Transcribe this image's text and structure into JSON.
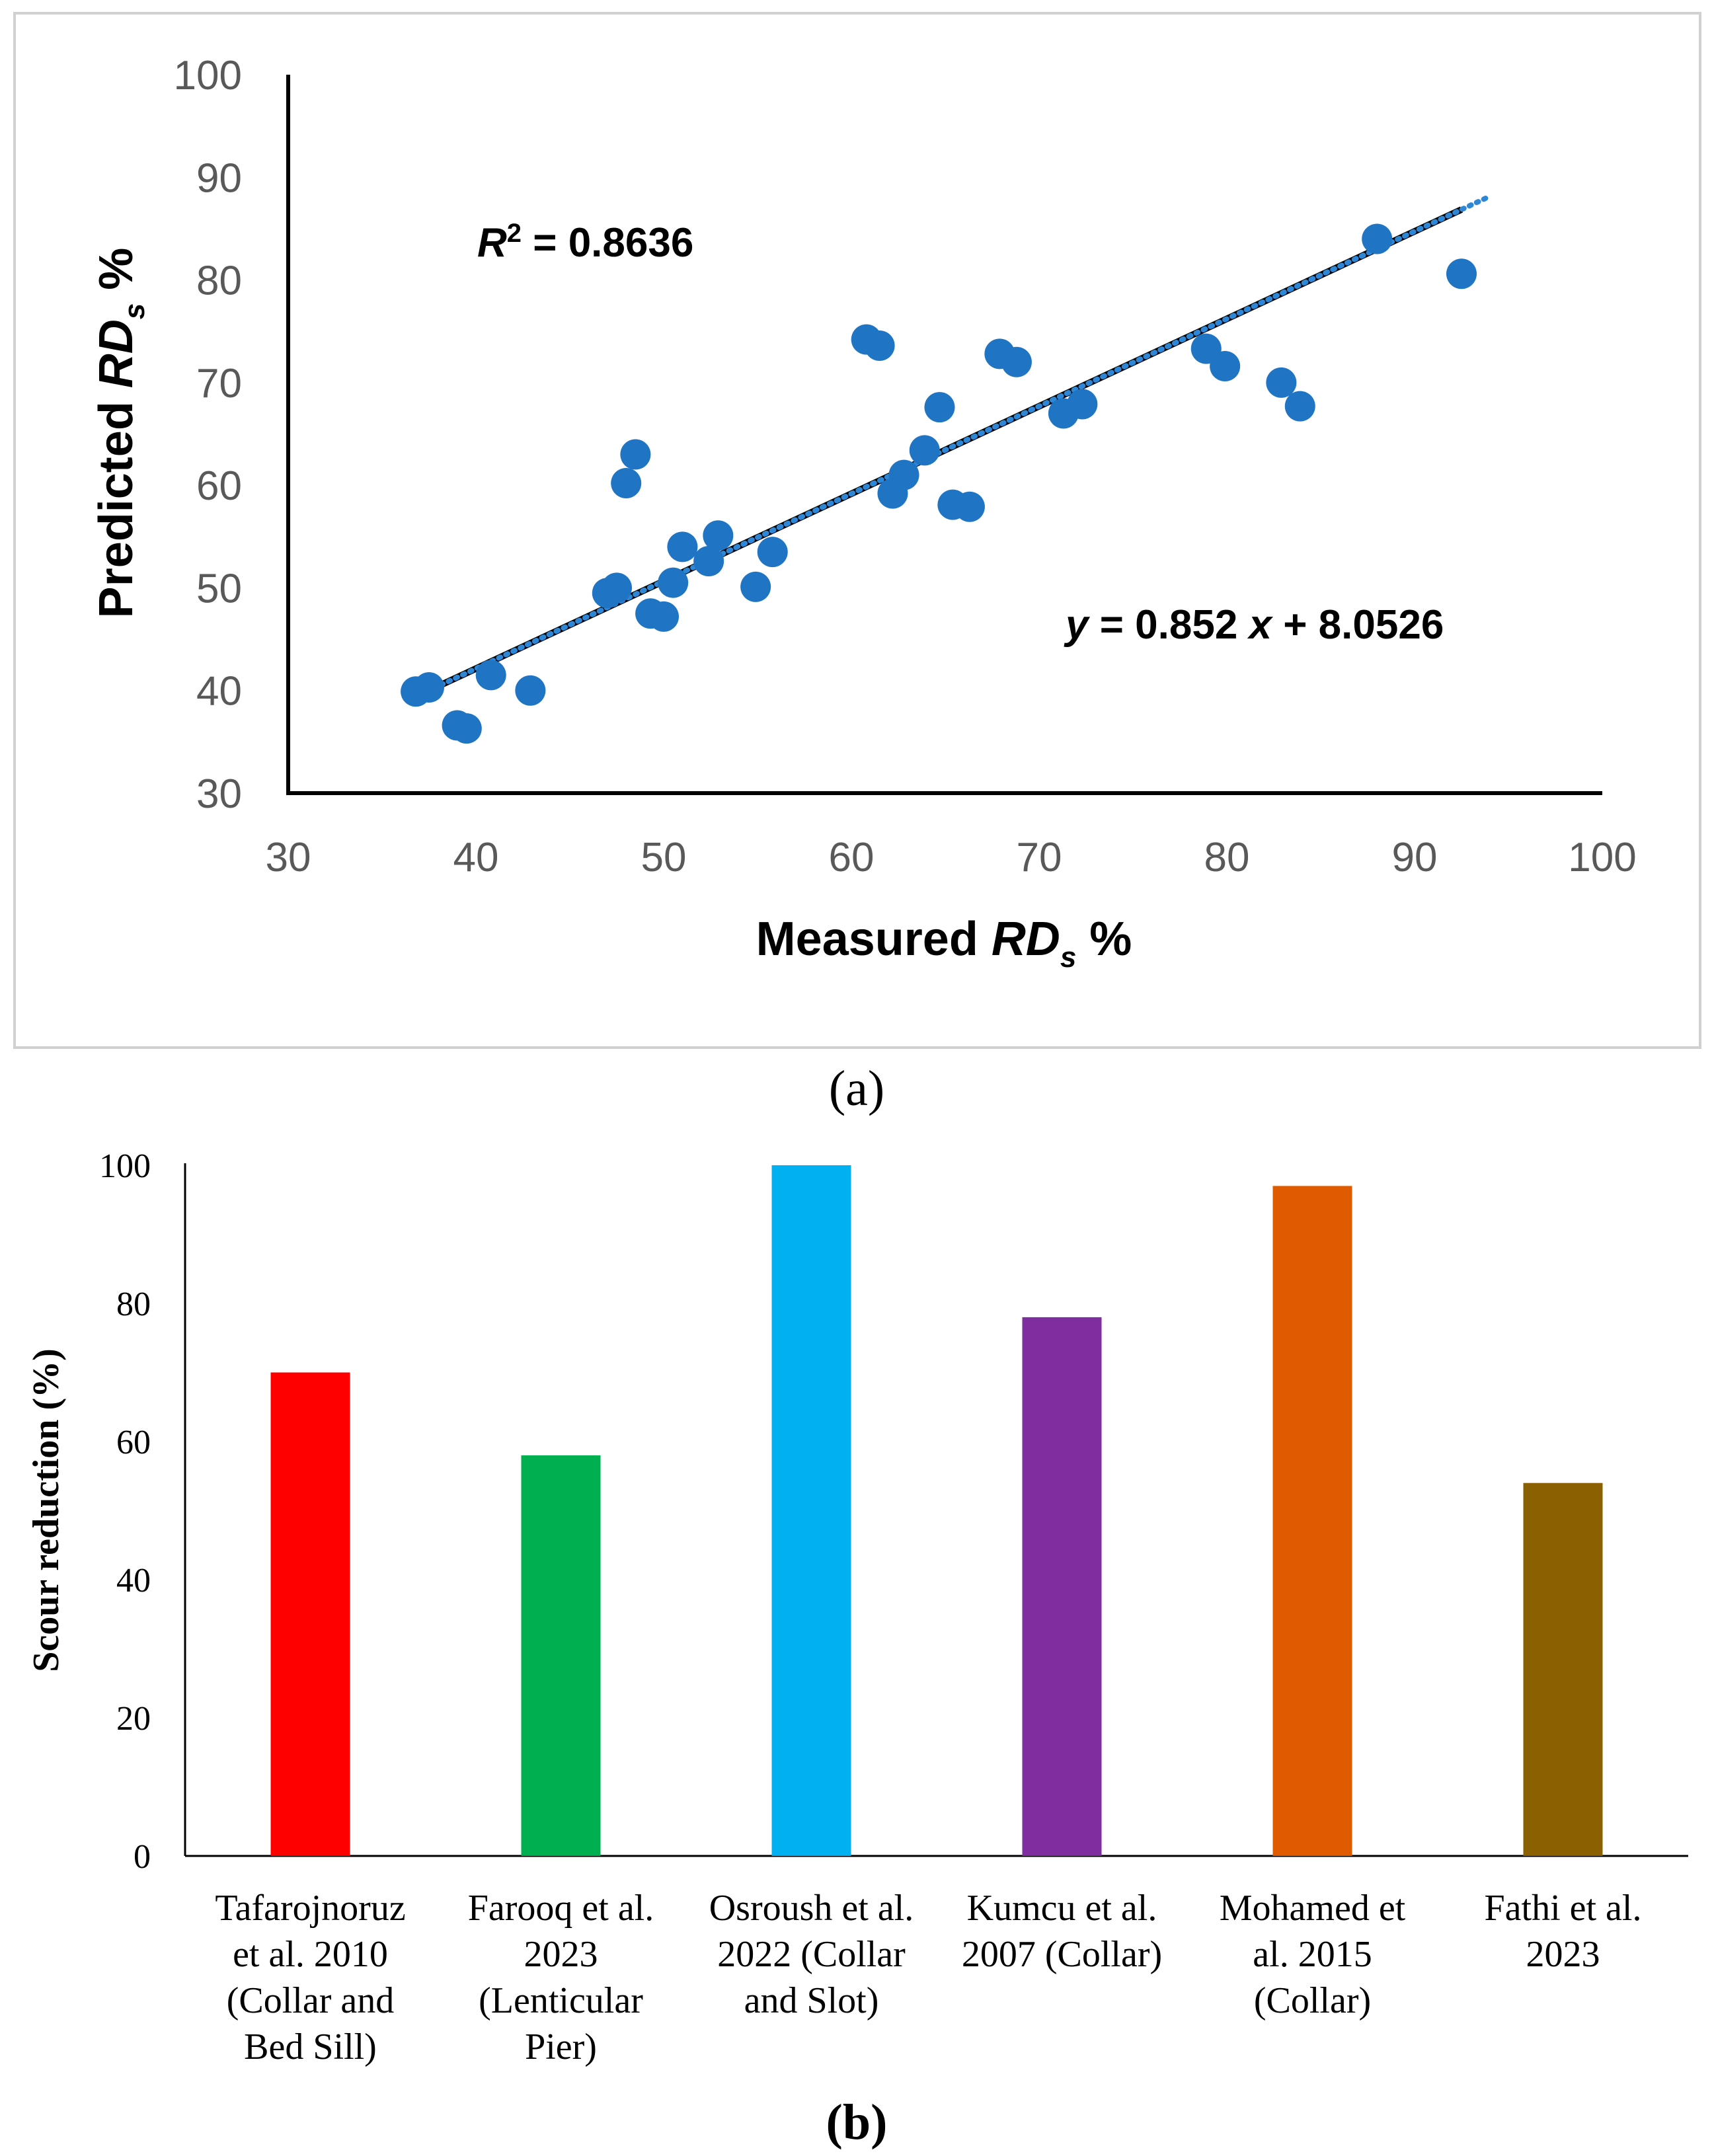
{
  "chart_data": [
    {
      "type": "scatter",
      "panel_label": "(a)",
      "xlabel_main": "Measured ",
      "xlabel_italic": "RD",
      "xlabel_sub": "s",
      "xlabel_tail": " %",
      "ylabel_main": "Predicted ",
      "ylabel_italic": "RD",
      "ylabel_sub": "s",
      "ylabel_tail": " %",
      "xlim": [
        30,
        100
      ],
      "ylim": [
        30,
        100
      ],
      "xticks": [
        30,
        40,
        50,
        60,
        70,
        80,
        90,
        100
      ],
      "yticks": [
        30,
        40,
        50,
        60,
        70,
        80,
        90,
        100
      ],
      "r2_italic": "R",
      "r2_sup": "2",
      "r2_value": " = 0.8636",
      "eq_y": "y",
      "eq_mid": " = 0.852 ",
      "eq_x": "x",
      "eq_tail": " + 8.0526",
      "trendline": {
        "slope": 0.852,
        "intercept": 8.0526,
        "x_range": [
          37,
          92.5
        ],
        "dotted_range": [
          37,
          94
        ]
      },
      "points": [
        [
          36.8,
          39.9
        ],
        [
          37.5,
          40.3
        ],
        [
          39.0,
          36.6
        ],
        [
          39.5,
          36.3
        ],
        [
          40.8,
          41.5
        ],
        [
          42.9,
          40.0
        ],
        [
          47.0,
          49.5
        ],
        [
          47.5,
          50.0
        ],
        [
          48.0,
          60.2
        ],
        [
          48.5,
          63.0
        ],
        [
          49.3,
          47.5
        ],
        [
          50.0,
          47.2
        ],
        [
          50.5,
          50.5
        ],
        [
          51.0,
          54.0
        ],
        [
          52.4,
          52.6
        ],
        [
          52.9,
          55.1
        ],
        [
          54.9,
          50.1
        ],
        [
          55.8,
          53.5
        ],
        [
          60.8,
          74.2
        ],
        [
          61.5,
          73.6
        ],
        [
          62.2,
          59.2
        ],
        [
          62.8,
          61.0
        ],
        [
          63.9,
          63.4
        ],
        [
          64.7,
          67.6
        ],
        [
          65.4,
          58.1
        ],
        [
          66.3,
          57.9
        ],
        [
          67.9,
          72.8
        ],
        [
          68.8,
          72.0
        ],
        [
          71.3,
          67.0
        ],
        [
          72.3,
          67.9
        ],
        [
          78.9,
          73.3
        ],
        [
          79.9,
          71.6
        ],
        [
          82.9,
          70.0
        ],
        [
          83.9,
          67.7
        ],
        [
          88.0,
          84.0
        ],
        [
          92.5,
          80.6
        ]
      ],
      "point_color": "#1f74c4",
      "line_color": "#000000",
      "dots_color": "#2e86d6"
    },
    {
      "type": "bar",
      "panel_label": "(b)",
      "ylabel": "Scour reduction (%)",
      "ylim": [
        0,
        100
      ],
      "yticks": [
        0,
        20,
        40,
        60,
        80,
        100
      ],
      "categories": [
        [
          "Tafarojnoruz",
          "et al. 2010",
          "(Collar and",
          "Bed Sill)"
        ],
        [
          "Farooq et al.",
          "2023",
          "(Lenticular",
          "Pier)"
        ],
        [
          "Osroush et al.",
          "2022 (Collar",
          "and Slot)"
        ],
        [
          "Kumcu et al.",
          "2007 (Collar)"
        ],
        [
          "Mohamed et",
          "al. 2015",
          "(Collar)"
        ],
        [
          "Fathi et al.",
          "2023"
        ]
      ],
      "values": [
        70,
        58,
        100,
        78,
        97,
        54
      ],
      "colors": [
        "#ff0000",
        "#00b050",
        "#00b0f0",
        "#7f2ea0",
        "#e05a00",
        "#8b6000"
      ]
    }
  ]
}
